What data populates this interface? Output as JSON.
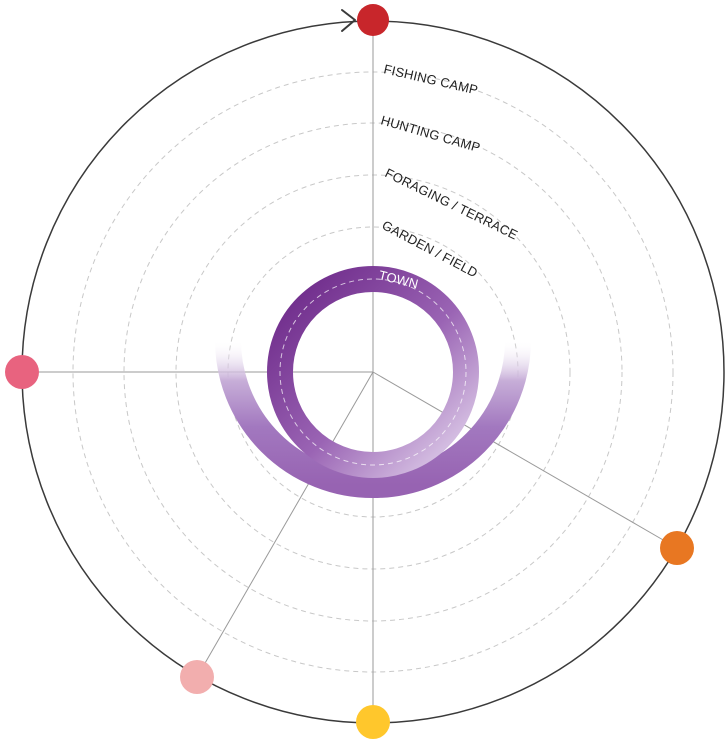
{
  "rings": [
    {
      "id": "town",
      "label": "TOWN"
    },
    {
      "id": "garden",
      "label": "GARDEN / FIELD"
    },
    {
      "id": "foraging",
      "label": "FORAGING / TERRACE"
    },
    {
      "id": "hunting",
      "label": "HUNTING CAMP"
    },
    {
      "id": "fishing",
      "label": "FISHING CAMP"
    }
  ],
  "markers": [
    {
      "id": "red",
      "color": "#c8262b"
    },
    {
      "id": "pink",
      "color": "#e8637f"
    },
    {
      "id": "orange",
      "color": "#e87722"
    },
    {
      "id": "yellow",
      "color": "#ffc72c"
    },
    {
      "id": "light-pink",
      "color": "#f2aeae"
    }
  ],
  "colors": {
    "outline": "#3a3a3a",
    "purple_dark": "#6a2586",
    "purple_mid": "#9a64b4",
    "purple_light": "#dccbe8"
  }
}
